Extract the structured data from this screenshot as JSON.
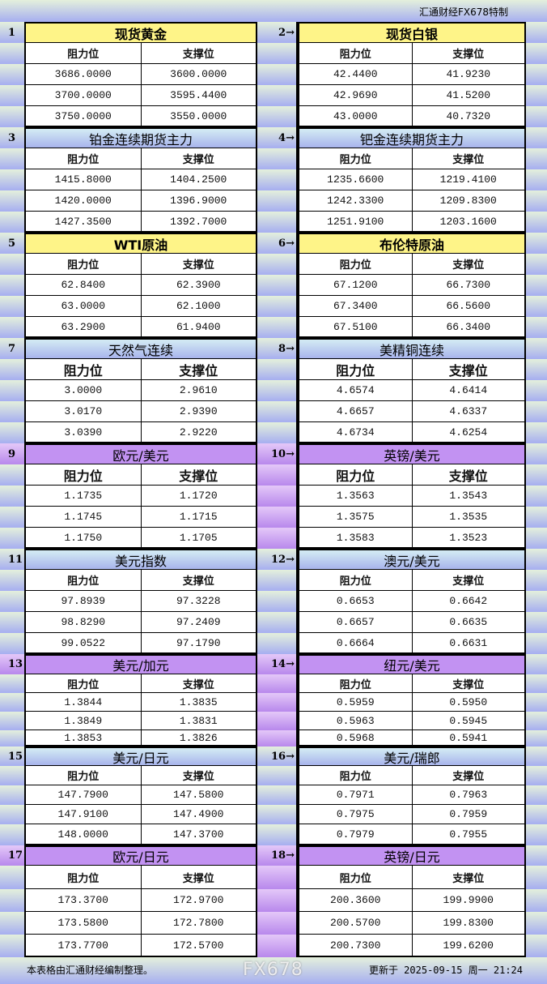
{
  "header": {
    "brand": "汇通财经FX678特制"
  },
  "labels": {
    "resistance": "阻力位",
    "support": "支撑位"
  },
  "colors": {
    "yellow": "#fef488",
    "blue": "#a8b4ec",
    "purple": "#c292f2"
  },
  "pairs": [
    {
      "theme": "yellow",
      "left": {
        "no": "1",
        "title": "现货黄金",
        "rows": [
          [
            "3686.0000",
            "3600.0000"
          ],
          [
            "3700.0000",
            "3595.4400"
          ],
          [
            "3750.0000",
            "3550.0000"
          ]
        ]
      },
      "right": {
        "no": "2→",
        "title": "现货白银",
        "rows": [
          [
            "42.4400",
            "41.9230"
          ],
          [
            "42.9690",
            "41.5200"
          ],
          [
            "43.0000",
            "40.7320"
          ]
        ]
      }
    },
    {
      "theme": "blue",
      "left": {
        "no": "3",
        "title": "铂金连续期货主力",
        "rows": [
          [
            "1415.8000",
            "1404.2500"
          ],
          [
            "1420.0000",
            "1396.9000"
          ],
          [
            "1427.3500",
            "1392.7000"
          ]
        ]
      },
      "right": {
        "no": "4→",
        "title": "钯金连续期货主力",
        "rows": [
          [
            "1235.6600",
            "1219.4100"
          ],
          [
            "1242.3300",
            "1209.8300"
          ],
          [
            "1251.9100",
            "1203.1600"
          ]
        ]
      }
    },
    {
      "theme": "yellow",
      "left": {
        "no": "5",
        "title": "WTI原油",
        "rows": [
          [
            "62.8400",
            "62.3900"
          ],
          [
            "63.0000",
            "62.1000"
          ],
          [
            "63.2900",
            "61.9400"
          ]
        ]
      },
      "right": {
        "no": "6→",
        "title": "布伦特原油",
        "rows": [
          [
            "67.1200",
            "66.7300"
          ],
          [
            "67.3400",
            "66.5600"
          ],
          [
            "67.5100",
            "66.3400"
          ]
        ]
      }
    },
    {
      "theme": "blue",
      "left": {
        "no": "7",
        "title": "天然气连续",
        "rows": [
          [
            "3.0000",
            "2.9610"
          ],
          [
            "3.0170",
            "2.9390"
          ],
          [
            "3.0390",
            "2.9220"
          ]
        ]
      },
      "right": {
        "no": "8→",
        "title": "美精铜连续",
        "rows": [
          [
            "4.6574",
            "4.6414"
          ],
          [
            "4.6657",
            "4.6337"
          ],
          [
            "4.6734",
            "4.6254"
          ]
        ]
      }
    },
    {
      "theme": "purple",
      "left": {
        "no": "9",
        "title": "欧元/美元",
        "rows": [
          [
            "1.1735",
            "1.1720"
          ],
          [
            "1.1745",
            "1.1715"
          ],
          [
            "1.1750",
            "1.1705"
          ]
        ]
      },
      "right": {
        "no": "10→",
        "title": "英镑/美元",
        "rows": [
          [
            "1.3563",
            "1.3543"
          ],
          [
            "1.3575",
            "1.3535"
          ],
          [
            "1.3583",
            "1.3523"
          ]
        ]
      }
    },
    {
      "theme": "blue",
      "left": {
        "no": "11",
        "title": "美元指数",
        "rows": [
          [
            "97.8939",
            "97.3228"
          ],
          [
            "98.8290",
            "97.2409"
          ],
          [
            "99.0522",
            "97.1790"
          ]
        ]
      },
      "right": {
        "no": "12→",
        "title": "澳元/美元",
        "rows": [
          [
            "0.6653",
            "0.6642"
          ],
          [
            "0.6657",
            "0.6635"
          ],
          [
            "0.6664",
            "0.6631"
          ]
        ]
      }
    },
    {
      "theme": "purple",
      "left": {
        "no": "13",
        "title": "美元/加元",
        "rows": [
          [
            "1.3844",
            "1.3835"
          ],
          [
            "1.3849",
            "1.3831"
          ],
          [
            "1.3853",
            "1.3826"
          ]
        ]
      },
      "right": {
        "no": "14→",
        "title": "纽元/美元",
        "rows": [
          [
            "0.5959",
            "0.5950"
          ],
          [
            "0.5963",
            "0.5945"
          ],
          [
            "0.5968",
            "0.5941"
          ]
        ]
      }
    },
    {
      "theme": "blue",
      "left": {
        "no": "15",
        "title": "美元/日元",
        "rows": [
          [
            "147.7900",
            "147.5800"
          ],
          [
            "147.9100",
            "147.4900"
          ],
          [
            "148.0000",
            "147.3700"
          ]
        ]
      },
      "right": {
        "no": "16→",
        "title": "美元/瑞郎",
        "rows": [
          [
            "0.7971",
            "0.7963"
          ],
          [
            "0.7975",
            "0.7959"
          ],
          [
            "0.7979",
            "0.7955"
          ]
        ]
      }
    },
    {
      "theme": "purple",
      "left": {
        "no": "17",
        "title": "欧元/日元",
        "rows": [
          [
            "173.3700",
            "172.9700"
          ],
          [
            "173.5800",
            "172.7800"
          ],
          [
            "173.7700",
            "172.5700"
          ]
        ]
      },
      "right": {
        "no": "18→",
        "title": "英镑/日元",
        "rows": [
          [
            "200.3600",
            "199.9900"
          ],
          [
            "200.5700",
            "199.8300"
          ],
          [
            "200.7300",
            "199.6200"
          ]
        ]
      }
    }
  ],
  "footer": {
    "note": "本表格由汇通财经编制整理。",
    "updated": "更新于 2025-09-15 周一 21:24",
    "watermark": "FX678"
  }
}
